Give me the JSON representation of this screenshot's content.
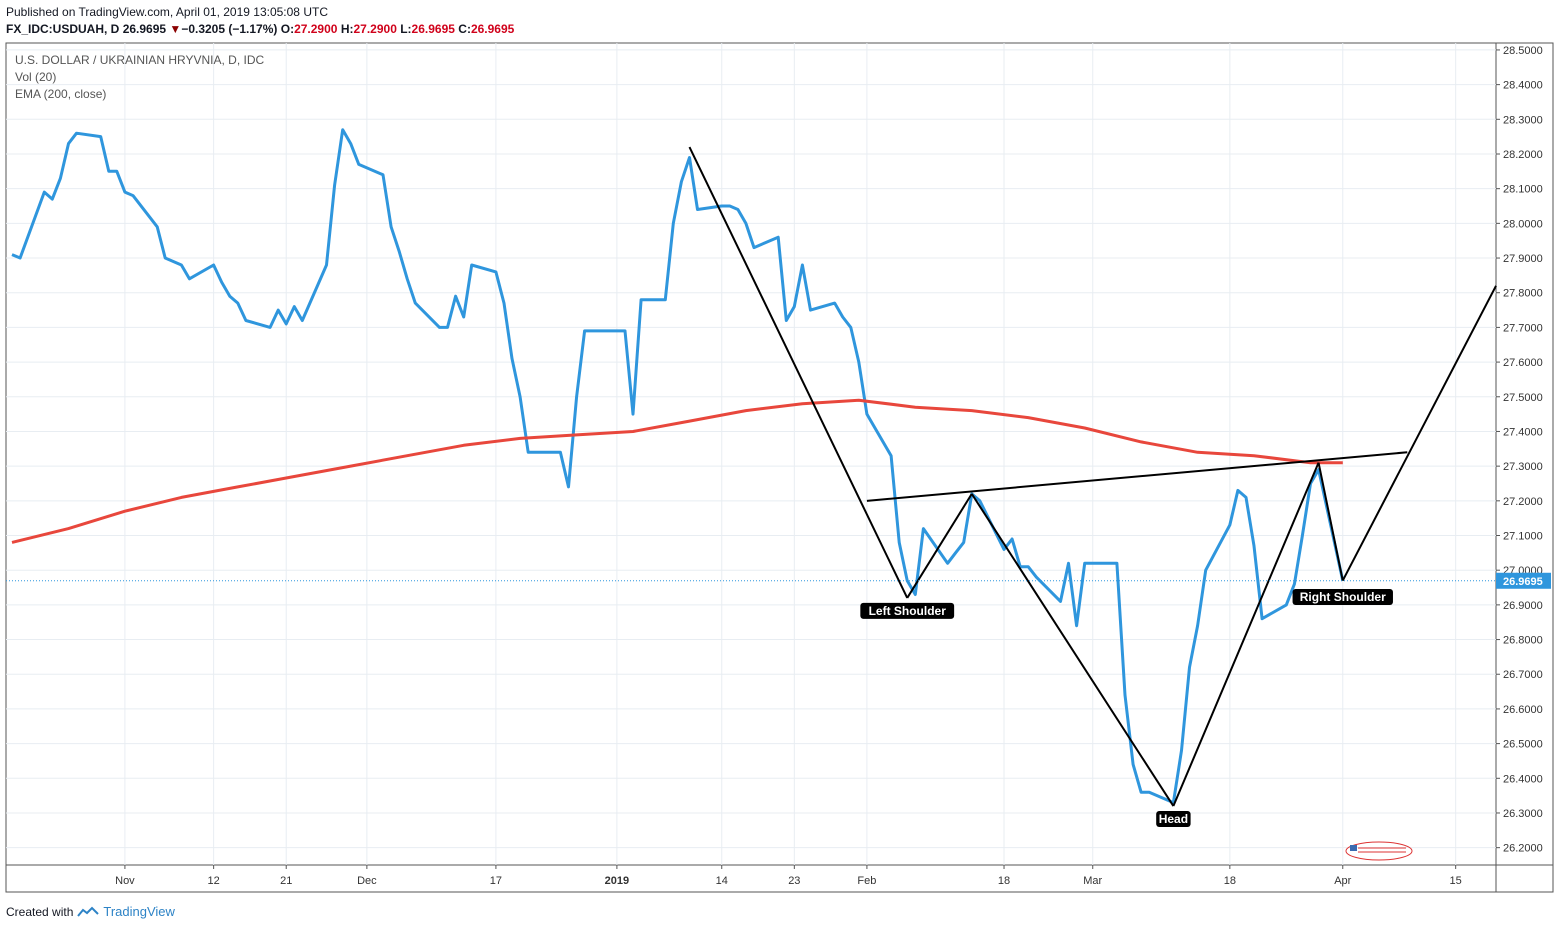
{
  "header": {
    "published": "Published on TradingView.com, April 01, 2019 13:05:08 UTC",
    "symbol": "FX_IDC:USDUAH, D",
    "last": "26.9695",
    "change": "−0.3205 (−1.17%)",
    "o_label": "O:",
    "o_val": "27.2900",
    "h_label": "H:",
    "h_val": "27.2900",
    "l_label": "L:",
    "l_val": "26.9695",
    "c_label": "C:",
    "c_val": "26.9695"
  },
  "legend": {
    "title": "U.S. DOLLAR / UKRAINIAN HRYVNIA, D, IDC",
    "vol": "Vol (20)",
    "ema": "EMA (200, close)"
  },
  "footer": {
    "created_with": "Created with",
    "brand": "TradingView"
  },
  "colors": {
    "price": "#2f96dd",
    "ema": "#e8473c",
    "annotation": "#000000",
    "last_price_bg": "#2f96dd",
    "grid": "#e8edf2"
  },
  "chart_data": {
    "type": "line",
    "y_range": [
      26.15,
      28.52
    ],
    "x_range": [
      "2018-10-18",
      "2019-04-20"
    ],
    "grid": true,
    "last_price_label": "26.9695",
    "y_ticks": [
      "28.5000",
      "28.4000",
      "28.3000",
      "28.2000",
      "28.1000",
      "28.0000",
      "27.9000",
      "27.8000",
      "27.7000",
      "27.6000",
      "27.5000",
      "27.4000",
      "27.3000",
      "27.2000",
      "27.1000",
      "27.0000",
      "26.9000",
      "26.8000",
      "26.7000",
      "26.6000",
      "26.5000",
      "26.4000",
      "26.3000",
      "26.2000"
    ],
    "x_ticks": [
      {
        "date": "2018-11-01",
        "label": "Nov",
        "bold": false
      },
      {
        "date": "2018-11-12",
        "label": "12",
        "bold": false
      },
      {
        "date": "2018-11-21",
        "label": "21",
        "bold": false
      },
      {
        "date": "2018-12-01",
        "label": "Dec",
        "bold": false
      },
      {
        "date": "2018-12-17",
        "label": "17",
        "bold": false
      },
      {
        "date": "2019-01-01",
        "label": "2019",
        "bold": true
      },
      {
        "date": "2019-01-14",
        "label": "14",
        "bold": false
      },
      {
        "date": "2019-01-23",
        "label": "23",
        "bold": false
      },
      {
        "date": "2019-02-01",
        "label": "Feb",
        "bold": false
      },
      {
        "date": "2019-02-18",
        "label": "18",
        "bold": false
      },
      {
        "date": "2019-03-01",
        "label": "Mar",
        "bold": false
      },
      {
        "date": "2019-03-18",
        "label": "18",
        "bold": false
      },
      {
        "date": "2019-04-01",
        "label": "Apr",
        "bold": false
      },
      {
        "date": "2019-04-15",
        "label": "15",
        "bold": false
      }
    ],
    "series": [
      {
        "kind": "price",
        "points": [
          [
            "2018-10-18",
            27.91
          ],
          [
            "2018-10-19",
            27.9
          ],
          [
            "2018-10-22",
            28.09
          ],
          [
            "2018-10-23",
            28.07
          ],
          [
            "2018-10-24",
            28.13
          ],
          [
            "2018-10-25",
            28.23
          ],
          [
            "2018-10-26",
            28.26
          ],
          [
            "2018-10-29",
            28.25
          ],
          [
            "2018-10-30",
            28.15
          ],
          [
            "2018-10-31",
            28.15
          ],
          [
            "2018-11-01",
            28.09
          ],
          [
            "2018-11-02",
            28.08
          ],
          [
            "2018-11-05",
            27.99
          ],
          [
            "2018-11-06",
            27.9
          ],
          [
            "2018-11-07",
            27.89
          ],
          [
            "2018-11-08",
            27.88
          ],
          [
            "2018-11-09",
            27.84
          ],
          [
            "2018-11-12",
            27.88
          ],
          [
            "2018-11-13",
            27.83
          ],
          [
            "2018-11-14",
            27.79
          ],
          [
            "2018-11-15",
            27.77
          ],
          [
            "2018-11-16",
            27.72
          ],
          [
            "2018-11-19",
            27.7
          ],
          [
            "2018-11-20",
            27.75
          ],
          [
            "2018-11-21",
            27.71
          ],
          [
            "2018-11-22",
            27.76
          ],
          [
            "2018-11-23",
            27.72
          ],
          [
            "2018-11-26",
            27.88
          ],
          [
            "2018-11-27",
            28.11
          ],
          [
            "2018-11-28",
            28.27
          ],
          [
            "2018-11-29",
            28.23
          ],
          [
            "2018-11-30",
            28.17
          ],
          [
            "2018-12-03",
            28.14
          ],
          [
            "2018-12-04",
            27.99
          ],
          [
            "2018-12-05",
            27.92
          ],
          [
            "2018-12-06",
            27.84
          ],
          [
            "2018-12-07",
            27.77
          ],
          [
            "2018-12-10",
            27.7
          ],
          [
            "2018-12-11",
            27.7
          ],
          [
            "2018-12-12",
            27.79
          ],
          [
            "2018-12-13",
            27.73
          ],
          [
            "2018-12-14",
            27.88
          ],
          [
            "2018-12-17",
            27.86
          ],
          [
            "2018-12-18",
            27.77
          ],
          [
            "2018-12-19",
            27.61
          ],
          [
            "2018-12-20",
            27.5
          ],
          [
            "2018-12-21",
            27.34
          ],
          [
            "2018-12-24",
            27.34
          ],
          [
            "2018-12-25",
            27.34
          ],
          [
            "2018-12-26",
            27.24
          ],
          [
            "2018-12-27",
            27.5
          ],
          [
            "2018-12-28",
            27.69
          ],
          [
            "2019-01-02",
            27.69
          ],
          [
            "2019-01-03",
            27.45
          ],
          [
            "2019-01-04",
            27.78
          ],
          [
            "2019-01-07",
            27.78
          ],
          [
            "2019-01-08",
            28.0
          ],
          [
            "2019-01-09",
            28.12
          ],
          [
            "2019-01-10",
            28.19
          ],
          [
            "2019-01-11",
            28.04
          ],
          [
            "2019-01-14",
            28.05
          ],
          [
            "2019-01-15",
            28.05
          ],
          [
            "2019-01-16",
            28.04
          ],
          [
            "2019-01-17",
            28.0
          ],
          [
            "2019-01-18",
            27.93
          ],
          [
            "2019-01-21",
            27.96
          ],
          [
            "2019-01-22",
            27.72
          ],
          [
            "2019-01-23",
            27.76
          ],
          [
            "2019-01-24",
            27.88
          ],
          [
            "2019-01-25",
            27.75
          ],
          [
            "2019-01-28",
            27.77
          ],
          [
            "2019-01-29",
            27.73
          ],
          [
            "2019-01-30",
            27.7
          ],
          [
            "2019-01-31",
            27.6
          ],
          [
            "2019-02-01",
            27.45
          ],
          [
            "2019-02-04",
            27.33
          ],
          [
            "2019-02-05",
            27.08
          ],
          [
            "2019-02-06",
            26.97
          ],
          [
            "2019-02-07",
            26.93
          ],
          [
            "2019-02-08",
            27.12
          ],
          [
            "2019-02-11",
            27.02
          ],
          [
            "2019-02-12",
            27.05
          ],
          [
            "2019-02-13",
            27.08
          ],
          [
            "2019-02-14",
            27.22
          ],
          [
            "2019-02-15",
            27.2
          ],
          [
            "2019-02-18",
            27.06
          ],
          [
            "2019-02-19",
            27.09
          ],
          [
            "2019-02-20",
            27.01
          ],
          [
            "2019-02-21",
            27.01
          ],
          [
            "2019-02-22",
            26.98
          ],
          [
            "2019-02-25",
            26.91
          ],
          [
            "2019-02-26",
            27.02
          ],
          [
            "2019-02-27",
            26.84
          ],
          [
            "2019-02-28",
            27.02
          ],
          [
            "2019-03-01",
            27.02
          ],
          [
            "2019-03-04",
            27.02
          ],
          [
            "2019-03-05",
            26.64
          ],
          [
            "2019-03-06",
            26.44
          ],
          [
            "2019-03-07",
            26.36
          ],
          [
            "2019-03-08",
            26.36
          ],
          [
            "2019-03-11",
            26.33
          ],
          [
            "2019-03-12",
            26.48
          ],
          [
            "2019-03-13",
            26.72
          ],
          [
            "2019-03-14",
            26.84
          ],
          [
            "2019-03-15",
            27.0
          ],
          [
            "2019-03-18",
            27.13
          ],
          [
            "2019-03-19",
            27.23
          ],
          [
            "2019-03-20",
            27.21
          ],
          [
            "2019-03-21",
            27.07
          ],
          [
            "2019-03-22",
            26.86
          ],
          [
            "2019-03-25",
            26.9
          ],
          [
            "2019-03-26",
            26.96
          ],
          [
            "2019-03-27",
            27.1
          ],
          [
            "2019-03-28",
            27.25
          ],
          [
            "2019-03-29",
            27.29
          ],
          [
            "2019-04-01",
            26.9695
          ]
        ]
      },
      {
        "kind": "ema",
        "label": "EMA (200, close)",
        "points": [
          [
            "2018-10-18",
            27.08
          ],
          [
            "2018-10-25",
            27.12
          ],
          [
            "2018-11-01",
            27.17
          ],
          [
            "2018-11-08",
            27.21
          ],
          [
            "2018-11-15",
            27.24
          ],
          [
            "2018-11-22",
            27.27
          ],
          [
            "2018-11-29",
            27.3
          ],
          [
            "2018-12-06",
            27.33
          ],
          [
            "2018-12-13",
            27.36
          ],
          [
            "2018-12-20",
            27.38
          ],
          [
            "2018-12-27",
            27.39
          ],
          [
            "2019-01-03",
            27.4
          ],
          [
            "2019-01-10",
            27.43
          ],
          [
            "2019-01-17",
            27.46
          ],
          [
            "2019-01-24",
            27.48
          ],
          [
            "2019-01-31",
            27.49
          ],
          [
            "2019-02-07",
            27.47
          ],
          [
            "2019-02-14",
            27.46
          ],
          [
            "2019-02-21",
            27.44
          ],
          [
            "2019-02-28",
            27.41
          ],
          [
            "2019-03-07",
            27.37
          ],
          [
            "2019-03-14",
            27.34
          ],
          [
            "2019-03-21",
            27.33
          ],
          [
            "2019-03-28",
            27.31
          ],
          [
            "2019-04-01",
            27.31
          ]
        ]
      }
    ],
    "annotations": {
      "pattern_lines": [
        [
          [
            "2019-01-10",
            28.22
          ],
          [
            "2019-02-06",
            26.92
          ]
        ],
        [
          [
            "2019-02-06",
            26.92
          ],
          [
            "2019-02-14",
            27.22
          ]
        ],
        [
          [
            "2019-02-14",
            27.22
          ],
          [
            "2019-03-11",
            26.32
          ]
        ],
        [
          [
            "2019-03-11",
            26.32
          ],
          [
            "2019-03-29",
            27.31
          ]
        ],
        [
          [
            "2019-03-29",
            27.31
          ],
          [
            "2019-04-01",
            26.97
          ]
        ],
        [
          [
            "2019-04-01",
            26.97
          ],
          [
            "2019-04-20",
            27.82
          ]
        ],
        [
          [
            "2019-02-01",
            27.2
          ],
          [
            "2019-04-09",
            27.34
          ]
        ]
      ],
      "labels": [
        {
          "text": "Left Shoulder",
          "date": "2019-02-06",
          "value": 26.9
        },
        {
          "text": "Head",
          "date": "2019-03-11",
          "value": 26.3
        },
        {
          "text": "Right Shoulder",
          "date": "2019-04-01",
          "value": 26.94
        }
      ]
    }
  }
}
